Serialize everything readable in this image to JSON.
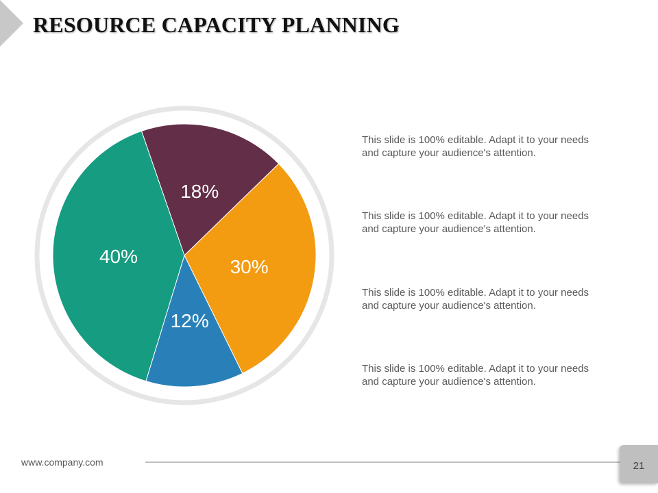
{
  "header": {
    "title": "RESOURCE CAPACITY PLANNING"
  },
  "chart_data": {
    "type": "pie",
    "title": "",
    "categories": [
      "18%",
      "30%",
      "12%",
      "40%"
    ],
    "values": [
      18,
      30,
      12,
      40
    ],
    "labels": [
      "18%",
      "30%",
      "12%",
      "40%"
    ],
    "colors": [
      "#632e47",
      "#f39c12",
      "#2980b9",
      "#169c81"
    ],
    "ring_color": "#e6e6e6",
    "start_angle_deg": -19
  },
  "descriptions": [
    {
      "line1": "This slide is 100% editable. Adapt it to your needs",
      "line2": "and capture your audience's attention."
    },
    {
      "line1": "This slide is 100% editable. Adapt it to your needs",
      "line2": "and capture your audience's attention."
    },
    {
      "line1": "This slide is 100% editable. Adapt it to your needs",
      "line2": "and capture your audience's attention."
    },
    {
      "line1": "This slide is 100% editable. Adapt it to your needs",
      "line2": "and capture your audience's attention."
    }
  ],
  "footer": {
    "url": "www.company.com",
    "page_number": "21"
  }
}
